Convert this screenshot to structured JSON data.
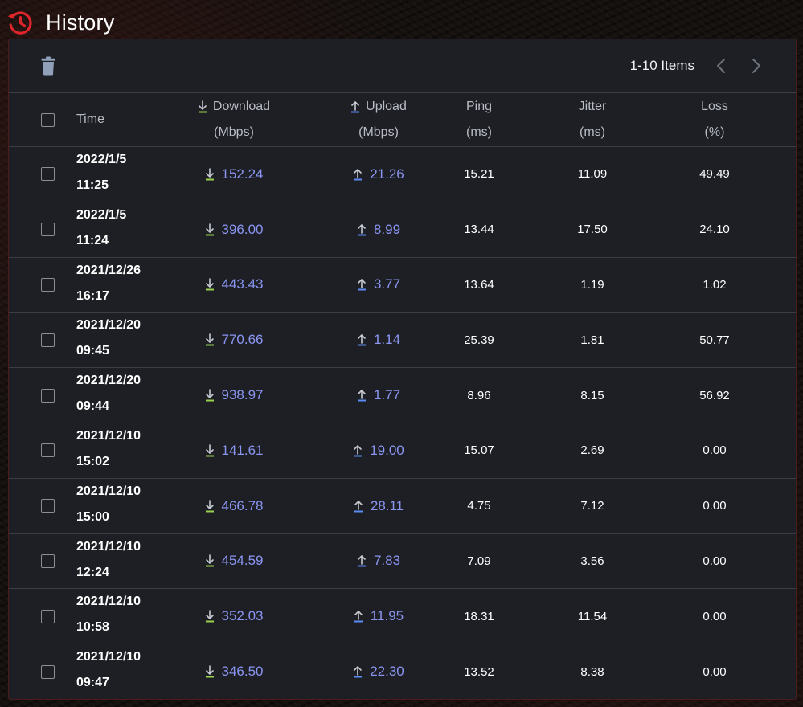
{
  "header": {
    "title": "History",
    "icon": "history-icon",
    "icon_color": "#e0242b"
  },
  "toolbar": {
    "delete_icon": "trash-icon",
    "pager_text": "1-10 Items",
    "prev_icon": "chevron-left-icon",
    "next_icon": "chevron-right-icon"
  },
  "table": {
    "columns": {
      "time": "Time",
      "download": {
        "label": "Download",
        "unit": "(Mbps)"
      },
      "upload": {
        "label": "Upload",
        "unit": "(Mbps)"
      },
      "ping": {
        "label": "Ping",
        "unit": "(ms)"
      },
      "jitter": {
        "label": "Jitter",
        "unit": "(ms)"
      },
      "loss": {
        "label": "Loss",
        "unit": "(%)"
      }
    },
    "colors": {
      "speed_value": "#8a95f0",
      "download_icon": "#9ad14a",
      "upload_icon": "#5b8cf5"
    },
    "rows": [
      {
        "date": "2022/1/5",
        "time": "11:25",
        "download": "152.24",
        "upload": "21.26",
        "ping": "15.21",
        "jitter": "11.09",
        "loss": "49.49"
      },
      {
        "date": "2022/1/5",
        "time": "11:24",
        "download": "396.00",
        "upload": "8.99",
        "ping": "13.44",
        "jitter": "17.50",
        "loss": "24.10"
      },
      {
        "date": "2021/12/26",
        "time": "16:17",
        "download": "443.43",
        "upload": "3.77",
        "ping": "13.64",
        "jitter": "1.19",
        "loss": "1.02"
      },
      {
        "date": "2021/12/20",
        "time": "09:45",
        "download": "770.66",
        "upload": "1.14",
        "ping": "25.39",
        "jitter": "1.81",
        "loss": "50.77"
      },
      {
        "date": "2021/12/20",
        "time": "09:44",
        "download": "938.97",
        "upload": "1.77",
        "ping": "8.96",
        "jitter": "8.15",
        "loss": "56.92"
      },
      {
        "date": "2021/12/10",
        "time": "15:02",
        "download": "141.61",
        "upload": "19.00",
        "ping": "15.07",
        "jitter": "2.69",
        "loss": "0.00"
      },
      {
        "date": "2021/12/10",
        "time": "15:00",
        "download": "466.78",
        "upload": "28.11",
        "ping": "4.75",
        "jitter": "7.12",
        "loss": "0.00"
      },
      {
        "date": "2021/12/10",
        "time": "12:24",
        "download": "454.59",
        "upload": "7.83",
        "ping": "7.09",
        "jitter": "3.56",
        "loss": "0.00"
      },
      {
        "date": "2021/12/10",
        "time": "10:58",
        "download": "352.03",
        "upload": "11.95",
        "ping": "18.31",
        "jitter": "11.54",
        "loss": "0.00"
      },
      {
        "date": "2021/12/10",
        "time": "09:47",
        "download": "346.50",
        "upload": "22.30",
        "ping": "13.52",
        "jitter": "8.38",
        "loss": "0.00"
      }
    ]
  }
}
